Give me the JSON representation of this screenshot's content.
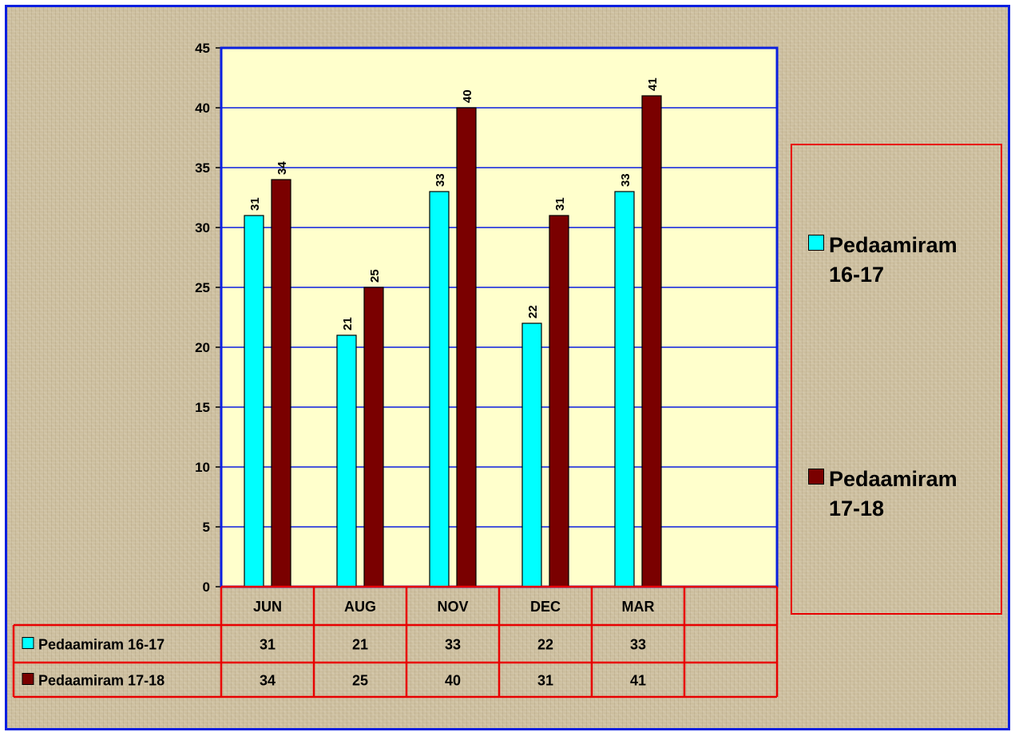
{
  "chart_data": {
    "type": "bar",
    "title": "",
    "xlabel": "",
    "ylabel": "",
    "categories": [
      "JUN",
      "AUG",
      "NOV",
      "DEC",
      "MAR"
    ],
    "series": [
      {
        "name": "Pedaamiram 16-17",
        "values": [
          31,
          21,
          33,
          22,
          33
        ],
        "color": "#00ffff"
      },
      {
        "name": "Pedaamiram 17-18",
        "values": [
          34,
          25,
          40,
          31,
          41
        ],
        "color": "#7a0000"
      }
    ],
    "ylim": [
      0,
      45
    ],
    "yticks": [
      0,
      5,
      10,
      15,
      20,
      25,
      30,
      35,
      40,
      45
    ],
    "grid": true,
    "plot_background": "#ffffcc",
    "gridline_color": "#0a1fe0",
    "legend_position": "right",
    "data_table": true
  },
  "legend": {
    "items": [
      {
        "line1": "Pedaamiram",
        "line2": "16-17"
      },
      {
        "line1": "Pedaamiram",
        "line2": "17-18"
      }
    ]
  }
}
